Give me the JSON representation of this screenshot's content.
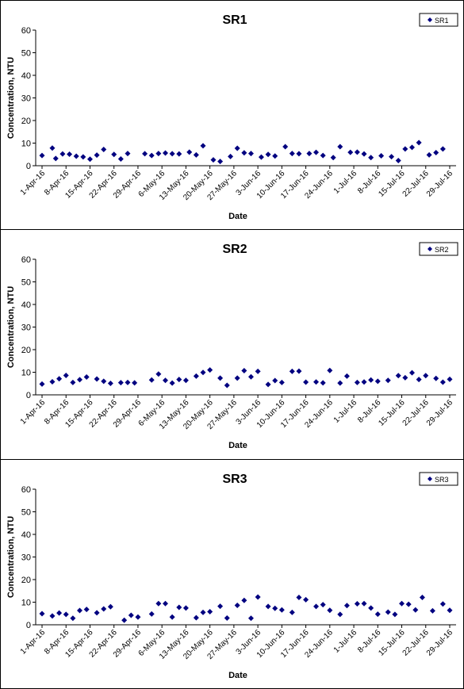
{
  "chart_data": [
    {
      "type": "scatter",
      "title": "SR1",
      "xlabel": "Date",
      "ylabel": "Concentration, NTU",
      "ylim": [
        0,
        60
      ],
      "yticks": [
        "0",
        "10",
        "20",
        "30",
        "40",
        "50",
        "60"
      ],
      "xticks": [
        "1-Apr-16",
        "8-Apr-16",
        "15-Apr-16",
        "22-Apr-16",
        "29-Apr-16",
        "6-May-16",
        "13-May-16",
        "20-May-16",
        "27-May-16",
        "3-Jun-16",
        "10-Jun-16",
        "17-Jun-16",
        "24-Jun-16",
        "1-Jul-16",
        "8-Jul-16",
        "15-Jul-16",
        "22-Jul-16",
        "29-Jul-16"
      ],
      "grid": false,
      "legend": "top-right",
      "marker_color": "#000080",
      "series": [
        {
          "name": "SR1",
          "points": [
            [
              "1-Apr-16",
              4.5
            ],
            [
              "4-Apr-16",
              7.8
            ],
            [
              "5-Apr-16",
              3.2
            ],
            [
              "7-Apr-16",
              5.2
            ],
            [
              "9-Apr-16",
              5.1
            ],
            [
              "11-Apr-16",
              4.2
            ],
            [
              "13-Apr-16",
              3.9
            ],
            [
              "15-Apr-16",
              2.9
            ],
            [
              "17-Apr-16",
              4.7
            ],
            [
              "19-Apr-16",
              7.2
            ],
            [
              "22-Apr-16",
              5.0
            ],
            [
              "24-Apr-16",
              3.0
            ],
            [
              "26-Apr-16",
              5.4
            ],
            [
              "1-May-16",
              5.3
            ],
            [
              "3-May-16",
              4.5
            ],
            [
              "5-May-16",
              5.4
            ],
            [
              "7-May-16",
              5.6
            ],
            [
              "9-May-16",
              5.3
            ],
            [
              "11-May-16",
              5.2
            ],
            [
              "14-May-16",
              6.0
            ],
            [
              "16-May-16",
              4.8
            ],
            [
              "18-May-16",
              8.8
            ],
            [
              "21-May-16",
              2.6
            ],
            [
              "23-May-16",
              1.9
            ],
            [
              "26-May-16",
              4.1
            ],
            [
              "28-May-16",
              7.7
            ],
            [
              "30-May-16",
              5.7
            ],
            [
              "1-Jun-16",
              5.4
            ],
            [
              "4-Jun-16",
              3.8
            ],
            [
              "6-Jun-16",
              5.0
            ],
            [
              "8-Jun-16",
              4.3
            ],
            [
              "11-Jun-16",
              8.4
            ],
            [
              "13-Jun-16",
              5.4
            ],
            [
              "15-Jun-16",
              5.3
            ],
            [
              "18-Jun-16",
              5.4
            ],
            [
              "20-Jun-16",
              5.9
            ],
            [
              "22-Jun-16",
              4.5
            ],
            [
              "25-Jun-16",
              3.6
            ],
            [
              "27-Jun-16",
              8.4
            ],
            [
              "30-Jun-16",
              5.9
            ],
            [
              "2-Jul-16",
              6.0
            ],
            [
              "4-Jul-16",
              5.2
            ],
            [
              "6-Jul-16",
              3.6
            ],
            [
              "9-Jul-16",
              4.4
            ],
            [
              "12-Jul-16",
              4.0
            ],
            [
              "14-Jul-16",
              2.3
            ],
            [
              "16-Jul-16",
              7.4
            ],
            [
              "18-Jul-16",
              8.1
            ],
            [
              "20-Jul-16",
              10.2
            ],
            [
              "23-Jul-16",
              4.8
            ],
            [
              "25-Jul-16",
              5.8
            ],
            [
              "27-Jul-16",
              7.4
            ]
          ]
        }
      ]
    },
    {
      "type": "scatter",
      "title": "SR2",
      "xlabel": "Date",
      "ylabel": "Concentration, NTU",
      "ylim": [
        0,
        60
      ],
      "yticks": [
        "0",
        "10",
        "20",
        "30",
        "40",
        "50",
        "60"
      ],
      "xticks": [
        "1-Apr-16",
        "8-Apr-16",
        "15-Apr-16",
        "22-Apr-16",
        "29-Apr-16",
        "6-May-16",
        "13-May-16",
        "20-May-16",
        "27-May-16",
        "3-Jun-16",
        "10-Jun-16",
        "17-Jun-16",
        "24-Jun-16",
        "1-Jul-16",
        "8-Jul-16",
        "15-Jul-16",
        "22-Jul-16",
        "29-Jul-16"
      ],
      "grid": false,
      "legend": "top-right",
      "marker_color": "#000080",
      "series": [
        {
          "name": "SR2",
          "points": [
            [
              "1-Apr-16",
              4.8
            ],
            [
              "4-Apr-16",
              5.8
            ],
            [
              "6-Apr-16",
              7.1
            ],
            [
              "8-Apr-16",
              8.6
            ],
            [
              "10-Apr-16",
              5.5
            ],
            [
              "12-Apr-16",
              6.7
            ],
            [
              "14-Apr-16",
              7.9
            ],
            [
              "17-Apr-16",
              7.0
            ],
            [
              "19-Apr-16",
              6.0
            ],
            [
              "21-Apr-16",
              5.1
            ],
            [
              "24-Apr-16",
              5.4
            ],
            [
              "26-Apr-16",
              5.5
            ],
            [
              "28-Apr-16",
              5.3
            ],
            [
              "3-May-16",
              6.6
            ],
            [
              "5-May-16",
              9.2
            ],
            [
              "7-May-16",
              6.4
            ],
            [
              "9-May-16",
              5.2
            ],
            [
              "11-May-16",
              6.8
            ],
            [
              "13-May-16",
              6.4
            ],
            [
              "16-May-16",
              8.3
            ],
            [
              "18-May-16",
              9.9
            ],
            [
              "20-May-16",
              11.0
            ],
            [
              "23-May-16",
              7.4
            ],
            [
              "25-May-16",
              4.2
            ],
            [
              "28-May-16",
              7.4
            ],
            [
              "30-May-16",
              10.7
            ],
            [
              "1-Jun-16",
              8.0
            ],
            [
              "3-Jun-16",
              10.4
            ],
            [
              "6-Jun-16",
              4.6
            ],
            [
              "8-Jun-16",
              6.3
            ],
            [
              "10-Jun-16",
              5.5
            ],
            [
              "13-Jun-16",
              10.4
            ],
            [
              "15-Jun-16",
              10.5
            ],
            [
              "17-Jun-16",
              5.6
            ],
            [
              "20-Jun-16",
              5.7
            ],
            [
              "22-Jun-16",
              5.3
            ],
            [
              "24-Jun-16",
              10.8
            ],
            [
              "27-Jun-16",
              5.2
            ],
            [
              "29-Jun-16",
              8.3
            ],
            [
              "2-Jul-16",
              5.5
            ],
            [
              "4-Jul-16",
              5.7
            ],
            [
              "6-Jul-16",
              6.6
            ],
            [
              "8-Jul-16",
              6.0
            ],
            [
              "11-Jul-16",
              6.4
            ],
            [
              "14-Jul-16",
              8.5
            ],
            [
              "16-Jul-16",
              7.6
            ],
            [
              "18-Jul-16",
              9.8
            ],
            [
              "20-Jul-16",
              6.8
            ],
            [
              "22-Jul-16",
              8.5
            ],
            [
              "25-Jul-16",
              7.3
            ],
            [
              "27-Jul-16",
              5.6
            ],
            [
              "29-Jul-16",
              6.9
            ]
          ]
        }
      ]
    },
    {
      "type": "scatter",
      "title": "SR3",
      "xlabel": "Date",
      "ylabel": "Concentration, NTU",
      "ylim": [
        0,
        60
      ],
      "yticks": [
        "0",
        "10",
        "20",
        "30",
        "40",
        "50",
        "60"
      ],
      "xticks": [
        "1-Apr-16",
        "8-Apr-16",
        "15-Apr-16",
        "22-Apr-16",
        "29-Apr-16",
        "6-May-16",
        "13-May-16",
        "20-May-16",
        "27-May-16",
        "3-Jun-16",
        "10-Jun-16",
        "17-Jun-16",
        "24-Jun-16",
        "1-Jul-16",
        "8-Jul-16",
        "15-Jul-16",
        "22-Jul-16",
        "29-Jul-16"
      ],
      "grid": false,
      "legend": "top-right",
      "marker_color": "#000080",
      "series": [
        {
          "name": "SR3",
          "points": [
            [
              "1-Apr-16",
              4.9
            ],
            [
              "4-Apr-16",
              3.9
            ],
            [
              "6-Apr-16",
              5.2
            ],
            [
              "8-Apr-16",
              4.6
            ],
            [
              "10-Apr-16",
              2.9
            ],
            [
              "12-Apr-16",
              6.3
            ],
            [
              "14-Apr-16",
              6.8
            ],
            [
              "17-Apr-16",
              5.3
            ],
            [
              "19-Apr-16",
              7.0
            ],
            [
              "21-Apr-16",
              8.0
            ],
            [
              "25-Apr-16",
              2.0
            ],
            [
              "27-Apr-16",
              4.2
            ],
            [
              "29-Apr-16",
              3.4
            ],
            [
              "3-May-16",
              4.8
            ],
            [
              "5-May-16",
              9.4
            ],
            [
              "7-May-16",
              9.4
            ],
            [
              "9-May-16",
              3.4
            ],
            [
              "11-May-16",
              7.7
            ],
            [
              "13-May-16",
              7.4
            ],
            [
              "16-May-16",
              3.1
            ],
            [
              "18-May-16",
              5.5
            ],
            [
              "20-May-16",
              5.8
            ],
            [
              "23-May-16",
              8.2
            ],
            [
              "25-May-16",
              3.0
            ],
            [
              "28-May-16",
              8.6
            ],
            [
              "30-May-16",
              10.8
            ],
            [
              "1-Jun-16",
              2.9
            ],
            [
              "3-Jun-16",
              12.3
            ],
            [
              "6-Jun-16",
              8.1
            ],
            [
              "8-Jun-16",
              7.3
            ],
            [
              "10-Jun-16",
              6.6
            ],
            [
              "13-Jun-16",
              5.5
            ],
            [
              "15-Jun-16",
              12.1
            ],
            [
              "17-Jun-16",
              11.1
            ],
            [
              "20-Jun-16",
              8.1
            ],
            [
              "22-Jun-16",
              8.9
            ],
            [
              "24-Jun-16",
              6.4
            ],
            [
              "27-Jun-16",
              4.6
            ],
            [
              "29-Jun-16",
              8.5
            ],
            [
              "2-Jul-16",
              9.3
            ],
            [
              "4-Jul-16",
              9.4
            ],
            [
              "6-Jul-16",
              7.4
            ],
            [
              "8-Jul-16",
              4.7
            ],
            [
              "11-Jul-16",
              5.6
            ],
            [
              "13-Jul-16",
              4.6
            ],
            [
              "15-Jul-16",
              9.4
            ],
            [
              "17-Jul-16",
              9.1
            ],
            [
              "19-Jul-16",
              6.6
            ],
            [
              "21-Jul-16",
              12.1
            ],
            [
              "24-Jul-16",
              6.2
            ],
            [
              "27-Jul-16",
              9.2
            ],
            [
              "29-Jul-16",
              6.4
            ]
          ]
        }
      ]
    }
  ]
}
